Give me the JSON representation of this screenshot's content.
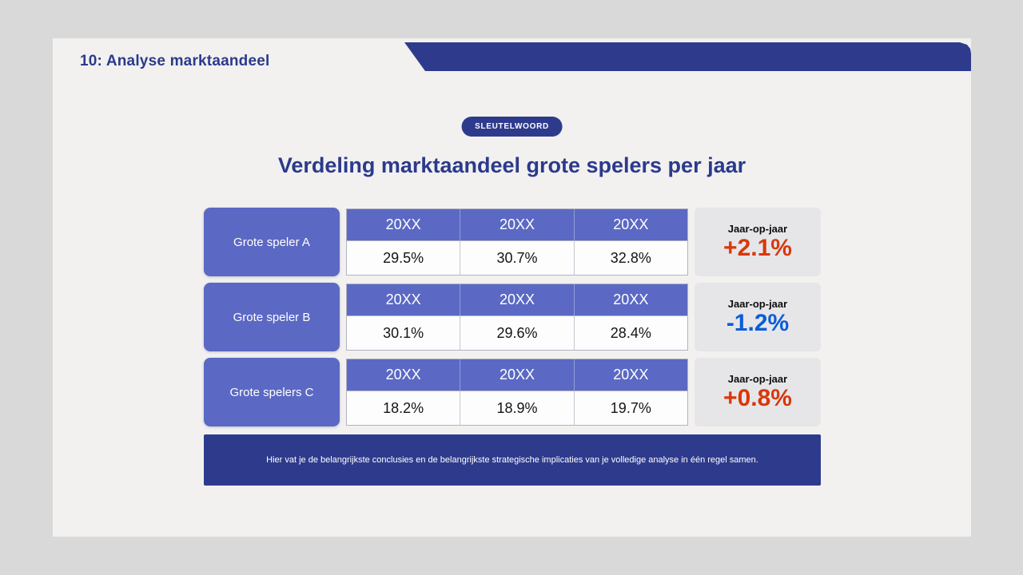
{
  "slide": {
    "heading": "10: Analyse marktaandeel",
    "keyword_badge": "SLEUTELWOORD",
    "title": "Verdeling marktaandeel grote spelers per jaar",
    "rows": [
      {
        "player": "Grote speler A",
        "years": [
          "20XX",
          "20XX",
          "20XX"
        ],
        "values": [
          "29.5%",
          "30.7%",
          "32.8%"
        ],
        "yoy_label": "Jaar-op-jaar",
        "yoy_value": "+2.1%",
        "yoy_color": "#d8380b"
      },
      {
        "player": "Grote speler B",
        "years": [
          "20XX",
          "20XX",
          "20XX"
        ],
        "values": [
          "30.1%",
          "29.6%",
          "28.4%"
        ],
        "yoy_label": "Jaar-op-jaar",
        "yoy_value": "-1.2%",
        "yoy_color": "#0b5cdb"
      },
      {
        "player": "Grote spelers C",
        "years": [
          "20XX",
          "20XX",
          "20XX"
        ],
        "values": [
          "18.2%",
          "18.9%",
          "19.7%"
        ],
        "yoy_label": "Jaar-op-jaar",
        "yoy_value": "+0.8%",
        "yoy_color": "#d8380b"
      }
    ],
    "footer_note": "Hier vat je de belangrijkste conclusies en de belangrijkste strategische implicaties van je volledige analyse in één regel samen."
  },
  "colors": {
    "navy": "#2e3b8d",
    "indigo": "#5b69c4",
    "slide_bg": "#f2f1f0",
    "stage_bg": "#d9d9da",
    "yoy_box_bg": "#e6e6e8",
    "positive": "#d8380b",
    "negative": "#0b5cdb"
  },
  "chart_data": {
    "type": "table",
    "title": "Verdeling marktaandeel grote spelers per jaar",
    "row_headers": [
      "Grote speler A",
      "Grote speler B",
      "Grote spelers C"
    ],
    "columns": [
      "20XX",
      "20XX",
      "20XX",
      "Jaar-op-jaar"
    ],
    "rows": [
      [
        29.5,
        30.7,
        32.8,
        2.1
      ],
      [
        30.1,
        29.6,
        28.4,
        -1.2
      ],
      [
        18.2,
        18.9,
        19.7,
        0.8
      ]
    ],
    "units": "%"
  }
}
